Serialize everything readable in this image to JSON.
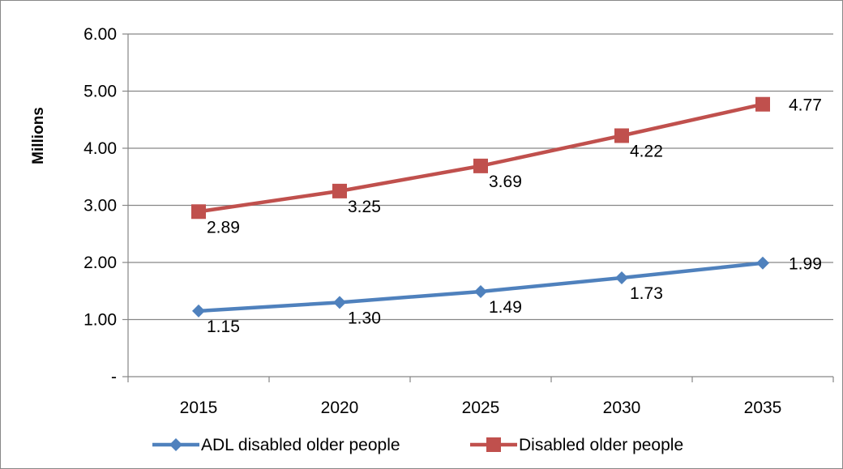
{
  "chart_data": {
    "type": "line",
    "title": "",
    "xlabel": "",
    "ylabel": "Millions",
    "categories": [
      "2015",
      "2020",
      "2025",
      "2030",
      "2035"
    ],
    "ylim": [
      0,
      6
    ],
    "yticks": [
      0,
      1,
      2,
      3,
      4,
      5,
      6
    ],
    "ytick_labels": [
      "-",
      "1.00",
      "2.00",
      "3.00",
      "4.00",
      "5.00",
      "6.00"
    ],
    "grid": true,
    "legend_position": "bottom",
    "series": [
      {
        "name": "ADL disabled older people",
        "values": [
          1.15,
          1.3,
          1.49,
          1.73,
          1.99
        ],
        "labels": [
          "1.15",
          "1.30",
          "1.49",
          "1.73",
          "1.99"
        ],
        "color": "#4F81BD",
        "marker": "diamond"
      },
      {
        "name": "Disabled older people",
        "values": [
          2.89,
          3.25,
          3.69,
          4.22,
          4.77
        ],
        "labels": [
          "2.89",
          "3.25",
          "3.69",
          "4.22",
          "4.77"
        ],
        "color": "#C0504D",
        "marker": "square"
      }
    ]
  }
}
